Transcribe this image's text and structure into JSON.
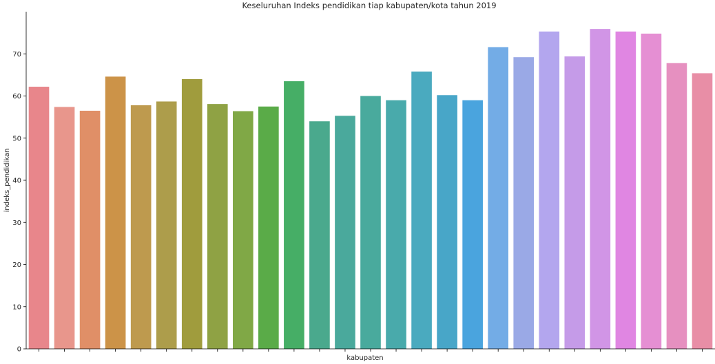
{
  "chart_data": {
    "type": "bar",
    "title": "Keseluruhan Indeks pendidikan tiap kabupaten/kota tahun 2019",
    "xlabel": "kabupaten",
    "ylabel": "indeks_pendidikan",
    "ylim": [
      0,
      80
    ],
    "yticks": [
      "0",
      "10",
      "20",
      "30",
      "40",
      "50",
      "60",
      "70"
    ],
    "grid": false,
    "values": [
      62.2,
      57.4,
      56.5,
      64.6,
      57.8,
      58.7,
      64.0,
      58.1,
      56.4,
      57.5,
      63.5,
      54.0,
      55.3,
      60.0,
      59.0,
      65.8,
      60.2,
      59.0,
      71.6,
      69.2,
      75.3,
      69.4,
      75.9,
      75.3,
      74.8,
      67.8,
      65.4
    ],
    "colors": [
      "#e8868b",
      "#e8968c",
      "#e08f67",
      "#cc9348",
      "#be9a4e",
      "#ad9d4b",
      "#a09c3d",
      "#8fa244",
      "#80a846",
      "#5aab48",
      "#46ae66",
      "#4aa98d",
      "#4aa99c",
      "#49aa9d",
      "#49aaab",
      "#4aaabf",
      "#48a6c8",
      "#4aa4de",
      "#73ace6",
      "#9aa9e6",
      "#b3a6ee",
      "#c59be8",
      "#d195e6",
      "#e086e2",
      "#e58fd3",
      "#e690c0",
      "#e88ea6"
    ]
  }
}
